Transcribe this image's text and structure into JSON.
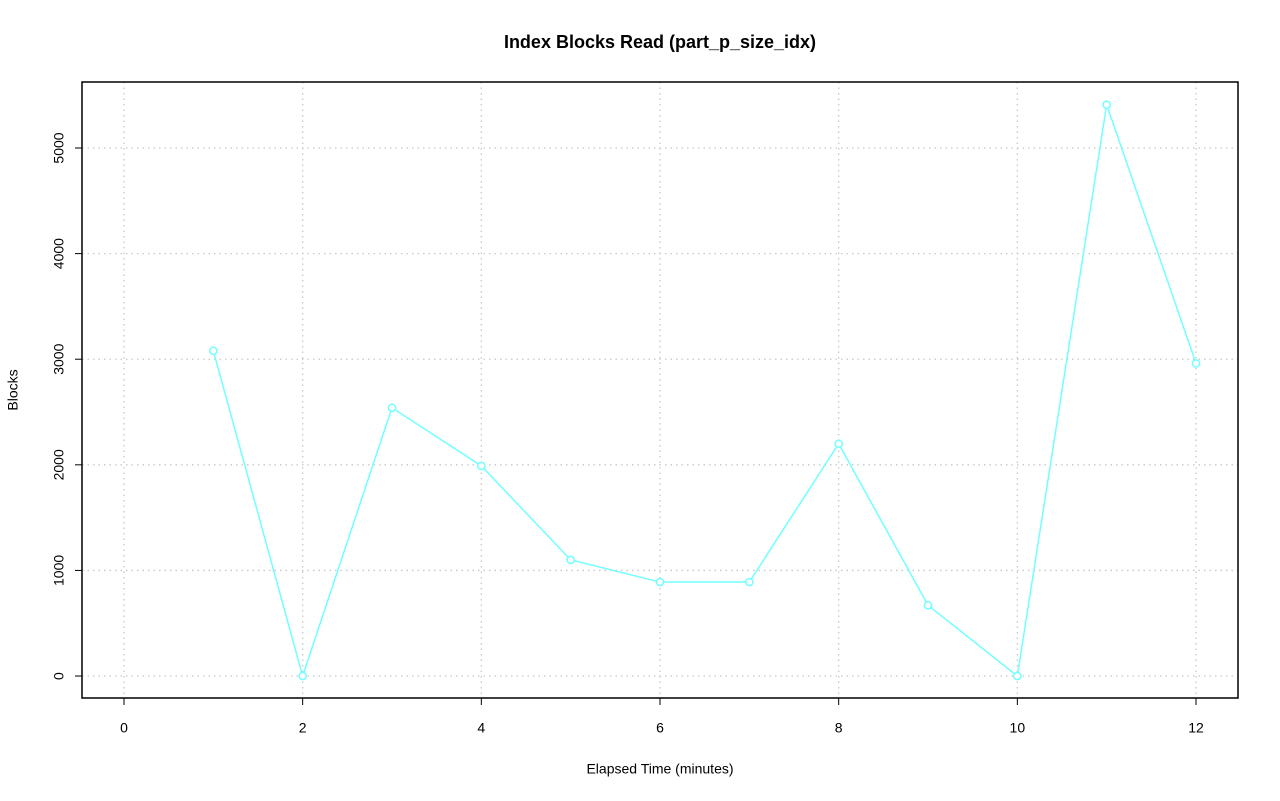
{
  "chart_data": {
    "type": "line",
    "title": "Index Blocks Read (part_p_size_idx)",
    "x_label": "Elapsed Time (minutes)",
    "y_label": "Blocks",
    "x": [
      1,
      2,
      3,
      4,
      5,
      6,
      7,
      8,
      9,
      10,
      11,
      12
    ],
    "series": [
      {
        "name": "Blocks",
        "color": "#73ffff",
        "values": [
          3080,
          0,
          2540,
          1990,
          1100,
          890,
          890,
          2200,
          670,
          0,
          5410,
          2960
        ]
      }
    ],
    "xlim": [
      -0.47,
      12.47
    ],
    "xticks": [
      0,
      2,
      4,
      6,
      8,
      10,
      12
    ],
    "ylim": [
      -208,
      5625
    ],
    "yticks": [
      0,
      1000,
      2000,
      3000,
      4000,
      5000
    ],
    "grid": true,
    "markers": "open-circle"
  }
}
